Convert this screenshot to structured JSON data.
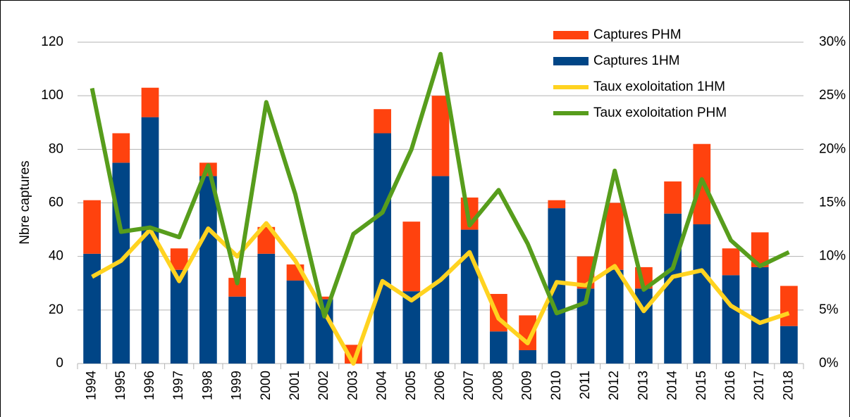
{
  "chart_data": {
    "type": "bar",
    "stacked": true,
    "y_label": "Nbre captures",
    "categories": [
      "1994",
      "1995",
      "1996",
      "1997",
      "1998",
      "1999",
      "2000",
      "2001",
      "2002",
      "2003",
      "2004",
      "2005",
      "2006",
      "2007",
      "2008",
      "2009",
      "2010",
      "2011",
      "2012",
      "2013",
      "2014",
      "2015",
      "2016",
      "2017",
      "2018"
    ],
    "series": [
      {
        "name": "Captures 1HM",
        "type": "bar",
        "color": "#004586",
        "values": [
          41,
          75,
          92,
          35,
          70,
          25,
          41,
          31,
          24,
          0,
          86,
          27,
          70,
          50,
          12,
          5,
          58,
          28,
          35,
          28,
          56,
          52,
          33,
          36,
          14
        ]
      },
      {
        "name": "Captures PHM",
        "type": "bar",
        "color": "#ff420e",
        "values": [
          20,
          11,
          11,
          8,
          5,
          7,
          10,
          6,
          1,
          7,
          9,
          26,
          30,
          12,
          14,
          13,
          3,
          12,
          25,
          8,
          12,
          30,
          10,
          13,
          15
        ]
      },
      {
        "name": "Taux exoloitation 1HM",
        "type": "line",
        "axis": "y2",
        "color": "#ffd320",
        "values": [
          8.1,
          9.6,
          12.5,
          7.7,
          12.6,
          10.0,
          13.1,
          9.6,
          4.8,
          0,
          7.7,
          5.9,
          7.8,
          10.4,
          4.2,
          1.9,
          7.6,
          7.3,
          9.1,
          4.9,
          8.1,
          8.7,
          5.4,
          3.8,
          4.7
        ]
      },
      {
        "name": "Taux exoloitation PHM",
        "type": "line",
        "axis": "y2",
        "color": "#579d1c",
        "values": [
          25.7,
          12.3,
          12.7,
          11.8,
          18.5,
          7.5,
          24.4,
          15.8,
          4.4,
          12.1,
          14.1,
          20.0,
          28.9,
          12.9,
          16.2,
          11.2,
          4.7,
          5.7,
          18.0,
          6.9,
          8.9,
          17.2,
          11.5,
          9.1,
          10.4
        ]
      }
    ],
    "legend_order": [
      1,
      0,
      2,
      3
    ],
    "legend": "top-right",
    "grid": true,
    "ylim": [
      0,
      120
    ],
    "yticks": [
      0,
      20,
      40,
      60,
      80,
      100,
      120
    ],
    "y2lim": [
      0,
      30
    ],
    "y2ticks": [
      {
        "value": 0,
        "label": "0%"
      },
      {
        "value": 5,
        "label": "5%"
      },
      {
        "value": 10,
        "label": "10%"
      },
      {
        "value": 15,
        "label": "15%"
      },
      {
        "value": 20,
        "label": "20%"
      },
      {
        "value": 25,
        "label": "25%"
      },
      {
        "value": 30,
        "label": "30%"
      }
    ]
  }
}
